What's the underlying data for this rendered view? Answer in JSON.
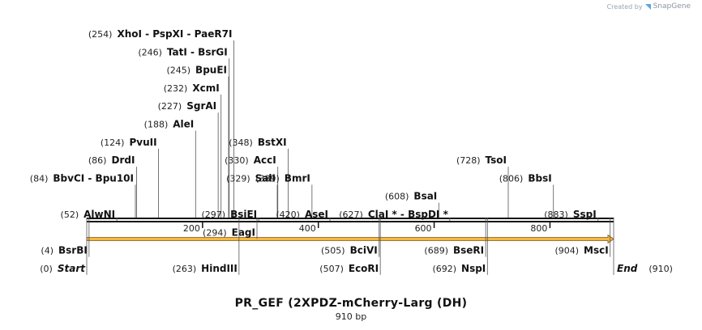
{
  "credit": {
    "text": "Created by",
    "brand": "SnapGene",
    "icon": "snapgene-logo-icon"
  },
  "plasmid": {
    "name": "PR_GEF  (2XPDZ-mCherry-Larg (DH)",
    "length_label": "910 bp",
    "length": 910
  },
  "axis": {
    "ticks": [
      200,
      400,
      600,
      800
    ]
  },
  "feature": {
    "name": "orf-arrow",
    "start": 1,
    "end": 910,
    "color": "#f7b73d"
  },
  "sites": [
    {
      "pos": 254,
      "label": "(254)",
      "names": [
        "XhoI",
        "- PspXI",
        "- PaeR7I"
      ],
      "row": 0
    },
    {
      "pos": 246,
      "label": "(246)",
      "names": [
        "TatI",
        "- BsrGI"
      ],
      "row": 1
    },
    {
      "pos": 245,
      "label": "(245)",
      "names": [
        "BpuEI"
      ],
      "row": 2
    },
    {
      "pos": 232,
      "label": "(232)",
      "names": [
        "XcmI"
      ],
      "row": 3
    },
    {
      "pos": 227,
      "label": "(227)",
      "names": [
        "SgrAI"
      ],
      "row": 4
    },
    {
      "pos": 188,
      "label": "(188)",
      "names": [
        "AleI"
      ],
      "row": 5
    },
    {
      "pos": 124,
      "label": "(124)",
      "names": [
        "PvuII"
      ],
      "row": 6
    },
    {
      "pos": 348,
      "label": "(348)",
      "names": [
        "BstXI"
      ],
      "row": 6
    },
    {
      "pos": 86,
      "label": "(86)",
      "names": [
        "DrdI"
      ],
      "row": 7
    },
    {
      "pos": 330,
      "label": "(330)",
      "names": [
        "AccI"
      ],
      "row": 7
    },
    {
      "pos": 728,
      "label": "(728)",
      "names": [
        "TsoI"
      ],
      "row": 7
    },
    {
      "pos": 84,
      "label": "(84)",
      "names": [
        "BbvCI",
        "- Bpu10I"
      ],
      "row": 8
    },
    {
      "pos": 329,
      "label": "(329)",
      "names": [
        "SalI"
      ],
      "row": 8
    },
    {
      "pos": 389,
      "label": "(389)",
      "names": [
        "BmrI"
      ],
      "row": 8
    },
    {
      "pos": 806,
      "label": "(806)",
      "names": [
        "BbsI"
      ],
      "row": 8
    },
    {
      "pos": 608,
      "label": "(608)",
      "names": [
        "BsaI"
      ],
      "row": 9
    },
    {
      "pos": 52,
      "label": "(52)",
      "names": [
        "AlwNI"
      ],
      "row": 10
    },
    {
      "pos": 297,
      "label": "(297)",
      "names": [
        "BsiEI"
      ],
      "row": 10
    },
    {
      "pos": 420,
      "label": "(420)",
      "names": [
        "AseI"
      ],
      "row": 10
    },
    {
      "pos": 627,
      "label": "(627)",
      "names": [
        "ClaI *",
        "- BspDI *"
      ],
      "row": 10
    },
    {
      "pos": 883,
      "label": "(883)",
      "names": [
        "SspI"
      ],
      "row": 10
    },
    {
      "pos": 294,
      "label": "(294)",
      "names": [
        "EagI"
      ],
      "row": 11
    },
    {
      "pos": 4,
      "label": "(4)",
      "names": [
        "BsrBI"
      ],
      "row": 12
    },
    {
      "pos": 505,
      "label": "(505)",
      "names": [
        "BciVI"
      ],
      "row": 12
    },
    {
      "pos": 689,
      "label": "(689)",
      "names": [
        "BseRI"
      ],
      "row": 12
    },
    {
      "pos": 904,
      "label": "(904)",
      "names": [
        "MscI"
      ],
      "row": 12
    },
    {
      "pos": 0,
      "label": "(0)",
      "names": [
        "Start"
      ],
      "row": 13,
      "em": true
    },
    {
      "pos": 263,
      "label": "(263)",
      "names": [
        "HindIII"
      ],
      "row": 13
    },
    {
      "pos": 507,
      "label": "(507)",
      "names": [
        "EcoRI"
      ],
      "row": 13
    },
    {
      "pos": 692,
      "label": "(692)",
      "names": [
        "NspI"
      ],
      "row": 13
    },
    {
      "pos": 910,
      "label": "(910)",
      "names": [
        "End"
      ],
      "row": 13,
      "em": true,
      "labelRight": true
    }
  ]
}
